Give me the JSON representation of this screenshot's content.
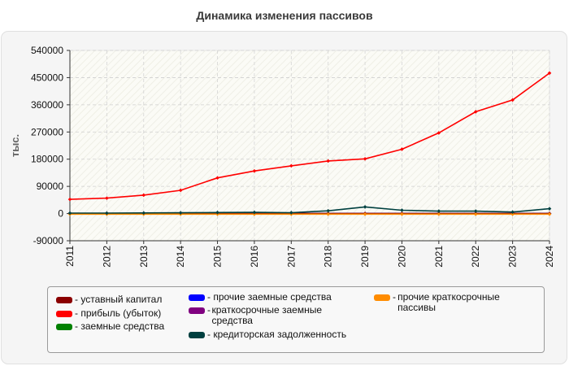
{
  "chart_data": {
    "type": "line",
    "title": "Динамика изменения пассивов",
    "ylabel": "тыс.",
    "xlabel": "",
    "x": [
      "2011",
      "2012",
      "2013",
      "2014",
      "2015",
      "2016",
      "2017",
      "2018",
      "2019",
      "2020",
      "2021",
      "2022",
      "2023",
      "2024"
    ],
    "ylim": [
      -90000,
      540000
    ],
    "yticks": [
      "540000",
      "450000",
      "360000",
      "270000",
      "180000",
      "90000",
      "0",
      "-90000"
    ],
    "grid": true,
    "legend_position": "bottom",
    "series": [
      {
        "name": "уставный капитал",
        "color": "#8b0000",
        "values": [
          10,
          10,
          10,
          10,
          10,
          10,
          10,
          10,
          10,
          10,
          10,
          10,
          10,
          10
        ]
      },
      {
        "name": "прибыль (убыток)",
        "color": "#ff0000",
        "values": [
          47000,
          51000,
          61000,
          77000,
          118000,
          141000,
          158000,
          174000,
          181000,
          213000,
          267000,
          337000,
          376000,
          465000
        ]
      },
      {
        "name": "заемные средства",
        "color": "#008000",
        "values": [
          0,
          0,
          0,
          0,
          0,
          0,
          0,
          0,
          0,
          0,
          0,
          0,
          0,
          0
        ]
      },
      {
        "name": "прочие заемные средства",
        "color": "#0000ff",
        "values": [
          0,
          0,
          0,
          0,
          0,
          0,
          0,
          0,
          0,
          0,
          0,
          0,
          0,
          0
        ]
      },
      {
        "name": "краткосрочные заемные средства",
        "color": "#800080",
        "values": [
          0,
          0,
          0,
          0,
          0,
          0,
          0,
          0,
          0,
          0,
          0,
          0,
          0,
          0
        ]
      },
      {
        "name": "кредиторская задолженность",
        "color": "#004040",
        "values": [
          1500,
          1500,
          2000,
          2500,
          3500,
          4000,
          3000,
          9000,
          22000,
          11000,
          8000,
          8000,
          5000,
          16000
        ]
      },
      {
        "name": "прочие краткосрочные пассивы",
        "color": "#ff8c00",
        "values": [
          -2000,
          -2000,
          -2000,
          -2000,
          -2000,
          -2000,
          -2000,
          -2000,
          -2000,
          -2000,
          -2000,
          -2000,
          -2000,
          -2000
        ]
      }
    ]
  }
}
